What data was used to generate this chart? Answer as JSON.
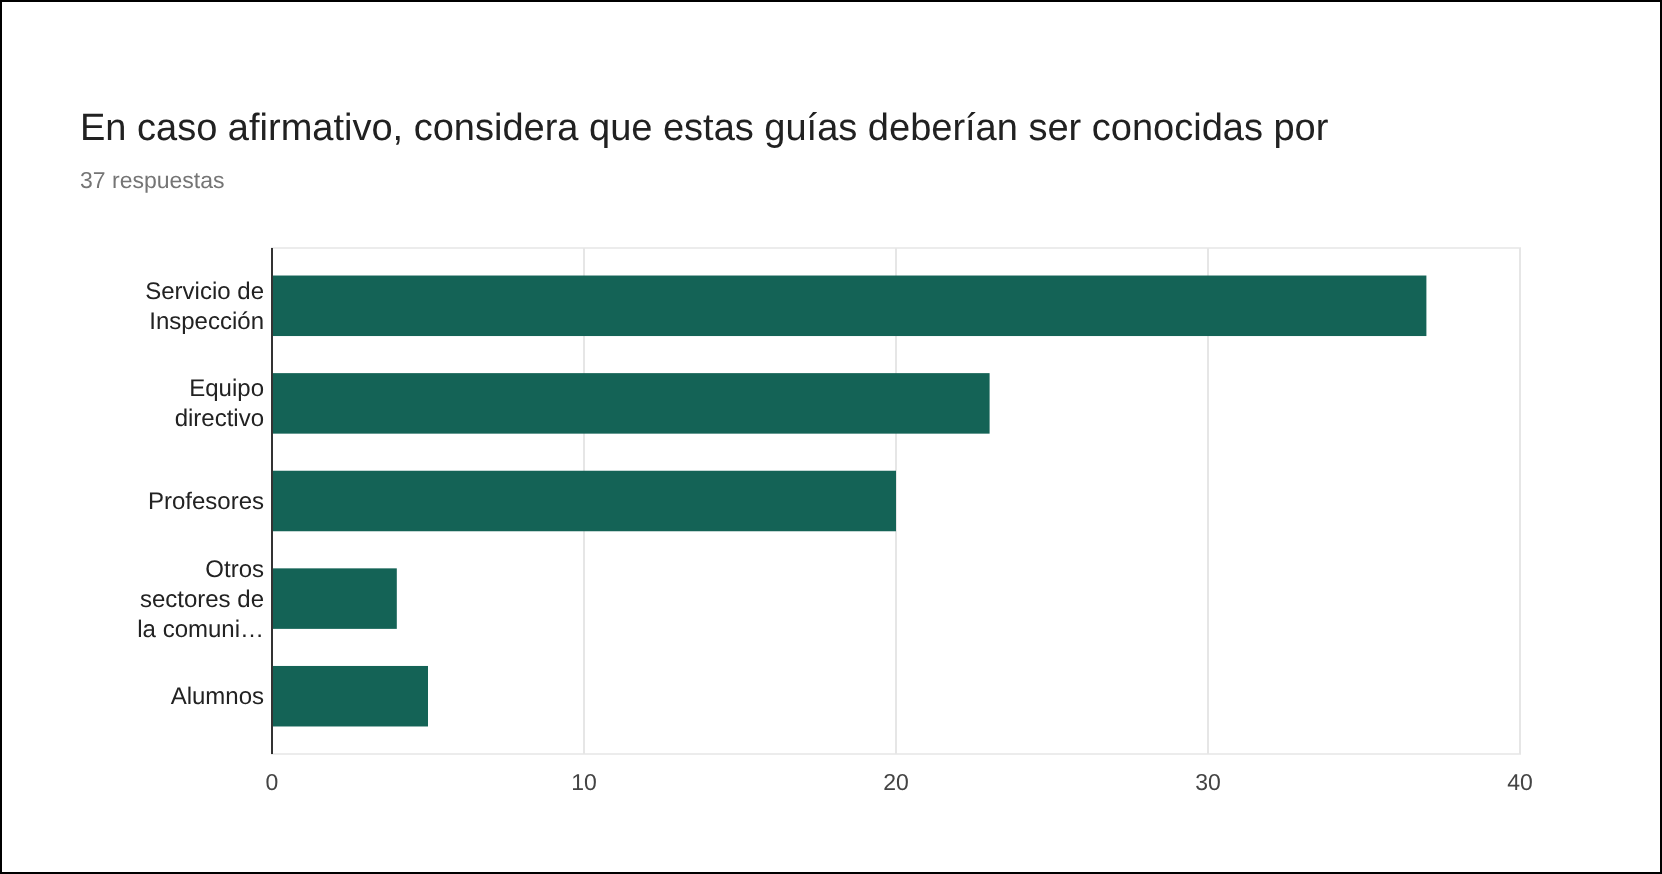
{
  "chart_data": {
    "type": "bar",
    "orientation": "horizontal",
    "title": "En caso afirmativo, considera que estas guías deberían ser conocidas por",
    "subtitle": "37 respuestas",
    "categories": [
      "Servicio de Inspección",
      "Equipo directivo",
      "Profesores",
      "Otros sectores de la comuni…",
      "Alumnos"
    ],
    "values": [
      37,
      23,
      20,
      4,
      5
    ],
    "color": "#146356",
    "xlim": [
      0,
      40
    ],
    "xticks": [
      0,
      10,
      20,
      30,
      40
    ],
    "grid": "x"
  }
}
